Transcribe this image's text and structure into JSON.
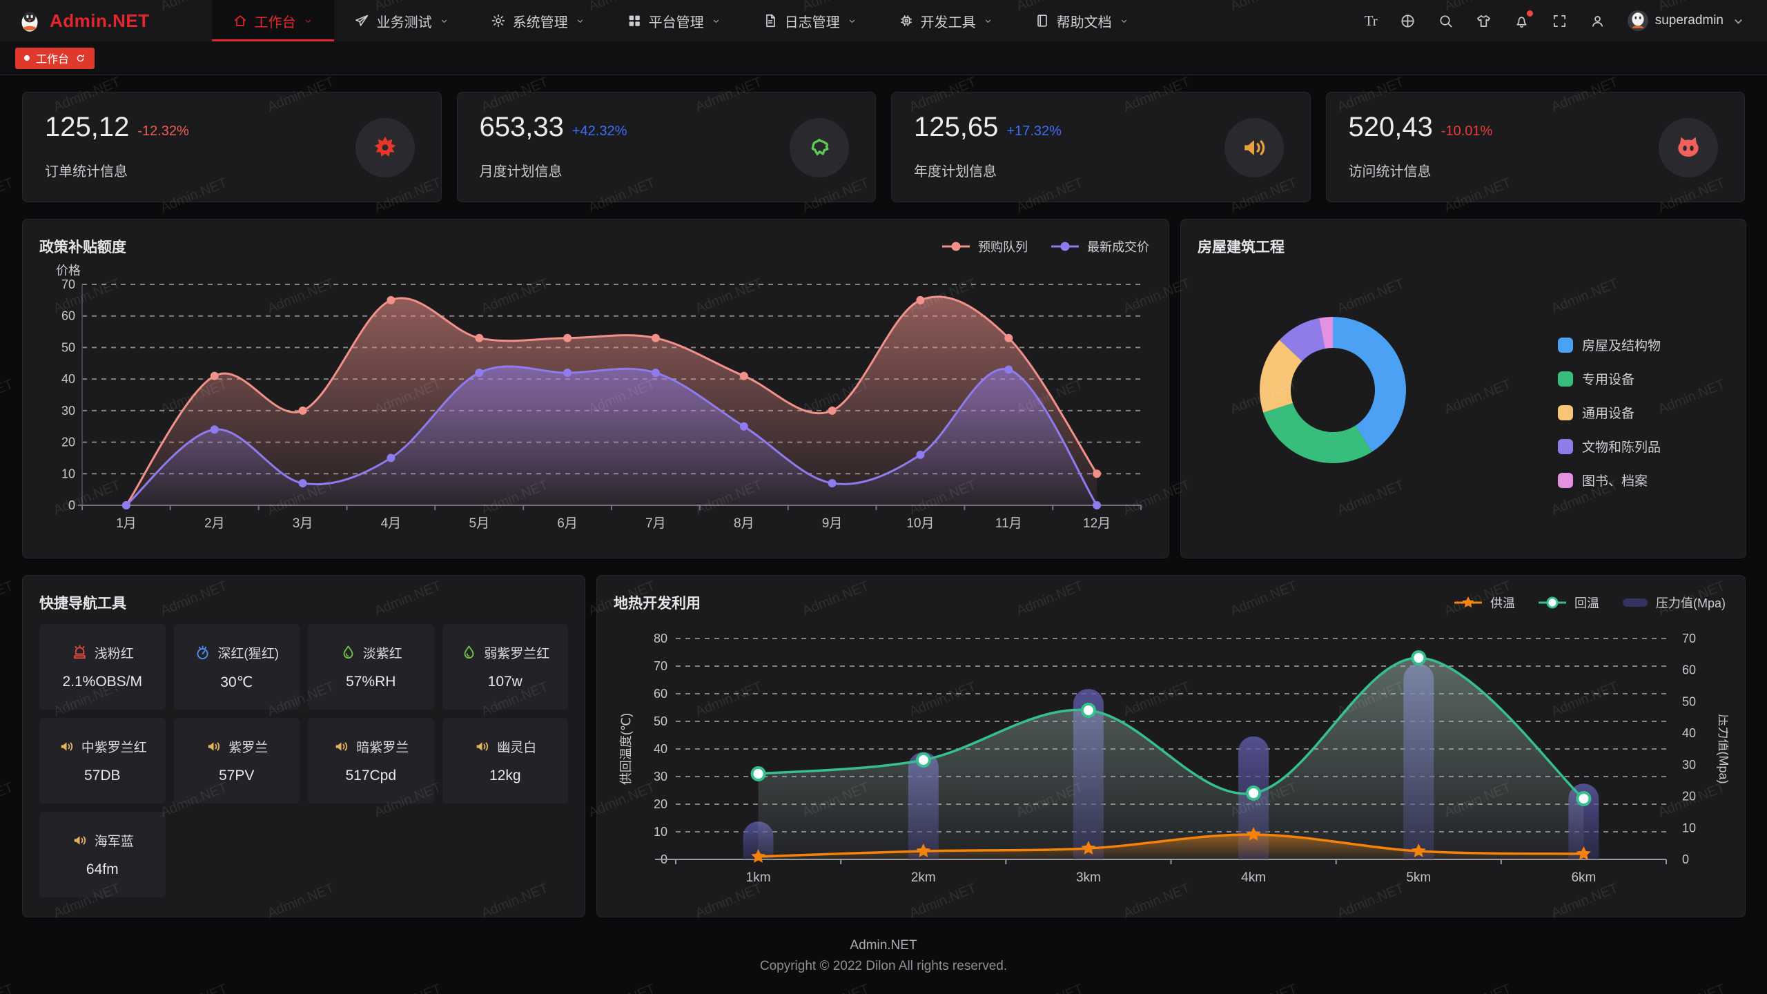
{
  "watermark": {
    "text": "Admin.NET"
  },
  "navbar": {
    "brand": "Admin.NET",
    "menu": [
      {
        "label": "工作台",
        "icon": "home-icon",
        "active": true
      },
      {
        "label": "业务测试",
        "icon": "send-icon",
        "active": false
      },
      {
        "label": "系统管理",
        "icon": "gear-icon",
        "active": false
      },
      {
        "label": "平台管理",
        "icon": "grid-icon",
        "active": false
      },
      {
        "label": "日志管理",
        "icon": "file-icon",
        "active": false
      },
      {
        "label": "开发工具",
        "icon": "chip-icon",
        "active": false
      },
      {
        "label": "帮助文档",
        "icon": "book-icon",
        "active": false
      }
    ],
    "actions": [
      {
        "name": "font-size-icon",
        "glyph": "Tr",
        "badge": false
      },
      {
        "name": "language-icon",
        "glyph": null,
        "badge": false
      },
      {
        "name": "search-icon",
        "glyph": null,
        "badge": false
      },
      {
        "name": "theme-icon",
        "glyph": null,
        "badge": false
      },
      {
        "name": "notification-icon",
        "glyph": null,
        "badge": true
      },
      {
        "name": "fullscreen-icon",
        "glyph": null,
        "badge": false
      },
      {
        "name": "user-icon",
        "glyph": null,
        "badge": false
      }
    ],
    "user": {
      "name": "superadmin"
    }
  },
  "tabbar": {
    "active_tab": "工作台"
  },
  "stat_cards": [
    {
      "value": "125,12",
      "delta": "-12.32%",
      "delta_color": "#F15C51",
      "label": "订单统计信息",
      "icon": "splash-icon",
      "icon_color": "#E8362A"
    },
    {
      "value": "653,33",
      "delta": "+42.32%",
      "delta_color": "#3D6EF7",
      "label": "月度计划信息",
      "icon": "china-map-icon",
      "icon_color": "#5BCB55"
    },
    {
      "value": "125,65",
      "delta": "+17.32%",
      "delta_color": "#3D6EF7",
      "label": "年度计划信息",
      "icon": "speaker-icon",
      "icon_color": "#E9A23B"
    },
    {
      "value": "520,43",
      "delta": "-10.01%",
      "delta_color": "#EF3B33",
      "label": "访问统计信息",
      "icon": "cat-icon",
      "icon_color": "#F0615C"
    }
  ],
  "quick_nav": {
    "title": "快捷导航工具",
    "items": [
      {
        "label": "浅粉红",
        "value": "2.1%OBS/M",
        "icon": "alarm-icon",
        "icon_color": "#E14B44"
      },
      {
        "label": "深红(猩红)",
        "value": "30℃",
        "icon": "gauge-icon",
        "icon_color": "#4E8FF0"
      },
      {
        "label": "淡紫红",
        "value": "57%RH",
        "icon": "drop-icon",
        "icon_color": "#6CBE45"
      },
      {
        "label": "弱紫罗兰红",
        "value": "107w",
        "icon": "drop-icon",
        "icon_color": "#6CBE45"
      },
      {
        "label": "中紫罗兰红",
        "value": "57DB",
        "icon": "speaker-icon",
        "icon_color": "#E2B25E"
      },
      {
        "label": "紫罗兰",
        "value": "57PV",
        "icon": "speaker-icon",
        "icon_color": "#E2B25E"
      },
      {
        "label": "暗紫罗兰",
        "value": "517Cpd",
        "icon": "speaker-icon",
        "icon_color": "#E2B25E"
      },
      {
        "label": "幽灵白",
        "value": "12kg",
        "icon": "speaker-icon",
        "icon_color": "#E2B25E"
      },
      {
        "label": "海军蓝",
        "value": "64fm",
        "icon": "speaker-icon",
        "icon_color": "#E2B25E"
      }
    ]
  },
  "footer": {
    "line1": "Admin.NET",
    "line2": "Copyright © 2022 Dilon All rights reserved."
  },
  "chart_data": [
    {
      "id": "policy",
      "type": "area",
      "title": "政策补贴额度",
      "ylabel": "价格",
      "ymax": 70,
      "ystep": 10,
      "grid": "dashed",
      "legend_position": "top-right",
      "categories": [
        "1月",
        "2月",
        "3月",
        "4月",
        "5月",
        "6月",
        "7月",
        "8月",
        "9月",
        "10月",
        "11月",
        "12月"
      ],
      "series": [
        {
          "name": "预购队列",
          "color": "#F2918A",
          "values": [
            0,
            41,
            30,
            65,
            53,
            53,
            53,
            41,
            30,
            65,
            53,
            10
          ]
        },
        {
          "name": "最新成交价",
          "color": "#8E7CEE",
          "values": [
            0,
            24,
            7,
            15,
            42,
            42,
            42,
            25,
            7,
            16,
            43,
            0
          ]
        }
      ]
    },
    {
      "id": "building",
      "type": "pie",
      "title": "房屋建筑工程",
      "legend_position": "right",
      "slices": [
        {
          "label": "房屋及结构物",
          "value": 41,
          "color": "#4DA1F4"
        },
        {
          "label": "专用设备",
          "value": 29,
          "color": "#38BE7C"
        },
        {
          "label": "通用设备",
          "value": 17,
          "color": "#F8C476"
        },
        {
          "label": "文物和陈列品",
          "value": 10,
          "color": "#8F7CE8"
        },
        {
          "label": "图书、档案",
          "value": 3,
          "color": "#E391E0"
        }
      ]
    },
    {
      "id": "geothermal",
      "type": "line-bar",
      "title": "地热开发利用",
      "grid": "dashed",
      "legend_position": "top-right",
      "categories": [
        "1km",
        "2km",
        "3km",
        "4km",
        "5km",
        "6km"
      ],
      "left_axis": {
        "name": "供回温度(℃)",
        "max": 80,
        "step": 10
      },
      "right_axis": {
        "name": "压力值(Mpa)",
        "max": 70,
        "step": 10
      },
      "series": [
        {
          "name": "压力值(Mpa)",
          "kind": "bar",
          "axis": "right",
          "color": "#4A4882",
          "legend_color": "#34325E",
          "values": [
            12,
            34,
            54,
            39,
            62,
            24
          ]
        },
        {
          "name": "回温",
          "kind": "line",
          "marker": "circle",
          "axis": "left",
          "color": "#35C08E",
          "values": [
            31,
            36,
            54,
            24,
            73,
            22
          ]
        },
        {
          "name": "供温",
          "kind": "line",
          "marker": "star",
          "axis": "left",
          "color": "#F5820B",
          "values": [
            1,
            3,
            4,
            9,
            3,
            2
          ]
        }
      ]
    }
  ]
}
